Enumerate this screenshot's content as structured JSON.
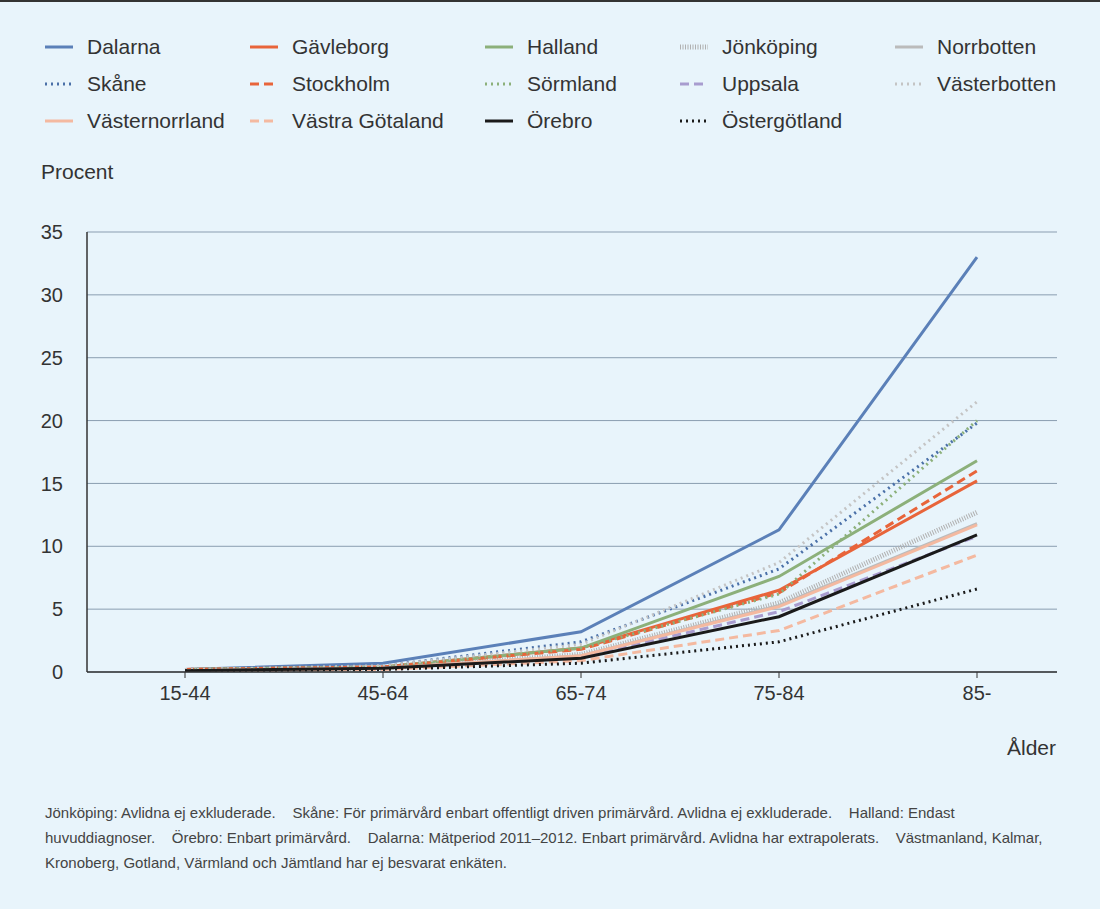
{
  "chart_data": {
    "type": "line",
    "y_label": "Procent",
    "x_label": "Ålder",
    "categories": [
      "15-44",
      "45-64",
      "65-74",
      "75-84",
      "85-"
    ],
    "ylim": [
      0,
      35
    ],
    "yticks": [
      0,
      5,
      10,
      15,
      20,
      25,
      30,
      35
    ],
    "grid": true,
    "legend": "top",
    "series": [
      {
        "name": "Dalarna",
        "color": "#5b80b8",
        "line_style": "solid",
        "values": [
          0.2,
          0.7,
          3.2,
          11.3,
          33
        ]
      },
      {
        "name": "Gävleborg",
        "color": "#e8643a",
        "line_style": "solid",
        "values": [
          0.2,
          0.4,
          1.9,
          6.5,
          15.2
        ]
      },
      {
        "name": "Halland",
        "color": "#8cb07a",
        "line_style": "solid",
        "values": [
          0.2,
          0.4,
          1.9,
          7.6,
          16.8
        ]
      },
      {
        "name": "Jönköping",
        "color": "#b0b0b0",
        "line_style": "striped",
        "values": [
          0.1,
          0.3,
          1.4,
          5.5,
          12.7
        ]
      },
      {
        "name": "Norrbotten",
        "color": "#bbbbbb",
        "line_style": "solid",
        "values": [
          0.1,
          0.3,
          1.3,
          5.3,
          11.8
        ]
      },
      {
        "name": "Skåne",
        "color": "#4a70a8",
        "line_style": "dotted",
        "values": [
          0.2,
          0.5,
          2.4,
          8.2,
          19.8
        ]
      },
      {
        "name": "Stockholm",
        "color": "#e8643a",
        "line_style": "dashed",
        "values": [
          0.2,
          0.4,
          1.8,
          6.3,
          16
        ]
      },
      {
        "name": "Sörmland",
        "color": "#8cb07a",
        "line_style": "dotted",
        "values": [
          0.2,
          0.4,
          1.9,
          6.2,
          20
        ]
      },
      {
        "name": "Uppsala",
        "color": "#a89ccf",
        "line_style": "dashed",
        "values": [
          0.1,
          0.3,
          1.2,
          4.8,
          10.8
        ]
      },
      {
        "name": "Västerbotten",
        "color": "#c4c4c4",
        "line_style": "dotted",
        "values": [
          0.2,
          0.5,
          2.2,
          8.7,
          21.5
        ]
      },
      {
        "name": "Västernorrland",
        "color": "#f4b9a0",
        "line_style": "solid",
        "values": [
          0.1,
          0.3,
          1.3,
          5.2,
          11.7
        ]
      },
      {
        "name": "Västra Götaland",
        "color": "#f4b9a0",
        "line_style": "dashed",
        "values": [
          0.1,
          0.2,
          0.9,
          3.3,
          9.3
        ]
      },
      {
        "name": "Örebro",
        "color": "#1a1a1a",
        "line_style": "solid",
        "values": [
          0.1,
          0.3,
          1.1,
          4.4,
          10.9
        ]
      },
      {
        "name": "Östergötland",
        "color": "#1a1a1a",
        "line_style": "dotted",
        "values": [
          0.1,
          0.2,
          0.7,
          2.4,
          6.6
        ]
      }
    ],
    "notes": [
      "Jönköping: Avlidna ej exkluderade.",
      "Skåne: För primärvård enbart offentligt driven primärvård. Avlidna ej exkluderade.",
      "Halland: Endast huvuddiagnoser.",
      "Örebro: Enbart primärvård.",
      "Dalarna: Mätperiod 2011–2012. Enbart primärvård. Avlidna har extrapolerats.",
      "Västmanland, Kalmar, Kronoberg, Gotland, Värmland och Jämtland har ej besvarat enkäten."
    ]
  }
}
